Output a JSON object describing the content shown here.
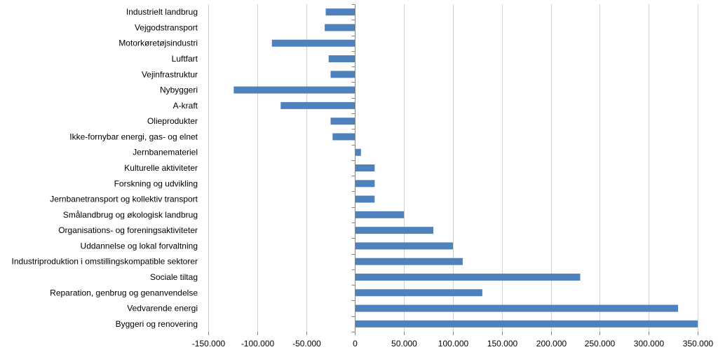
{
  "chart_data": {
    "type": "bar",
    "orientation": "horizontal",
    "title": "",
    "xlabel": "",
    "ylabel": "",
    "xlim": [
      -150000,
      350000
    ],
    "x_ticks": [
      -150000,
      -100000,
      -50000,
      0,
      50000,
      100000,
      150000,
      200000,
      250000,
      300000,
      350000
    ],
    "x_tick_labels": [
      "-150.000",
      "-100.000",
      "-50.000",
      "0",
      "50.000",
      "100.000",
      "150.000",
      "200.000",
      "250.000",
      "300.000",
      "350.000"
    ],
    "grid": true,
    "legend": "none",
    "bar_color": "#4f81bd",
    "categories": [
      "Industrielt landbrug",
      "Vejgodstransport",
      "Motorkøretøjsindustri",
      "Luftfart",
      "Vejinfrastruktur",
      "Nybyggeri",
      "A-kraft",
      "Olieprodukter",
      "Ikke-fornybar energi, gas- og elnet",
      "Jernbanemateriel",
      "Kulturelle aktiviteter",
      "Forskning og udvikling",
      "Jernbanetransport og kollektiv transport",
      "Smålandbrug og økologisk landbrug",
      "Organisations- og foreningsaktiviteter",
      "Uddannelse og lokal forvaltning",
      "Industriproduktion i omstillingskompatible sektorer",
      "Sociale tiltag",
      "Reparation, genbrug og genanvendelse",
      "Vedvarende energi",
      "Byggeri og renovering"
    ],
    "values": [
      -30000,
      -31000,
      -85000,
      -27000,
      -25000,
      -124000,
      -76000,
      -25000,
      -23000,
      6000,
      20000,
      20000,
      20000,
      50000,
      80000,
      100000,
      110000,
      230000,
      130000,
      330000,
      350000
    ]
  }
}
